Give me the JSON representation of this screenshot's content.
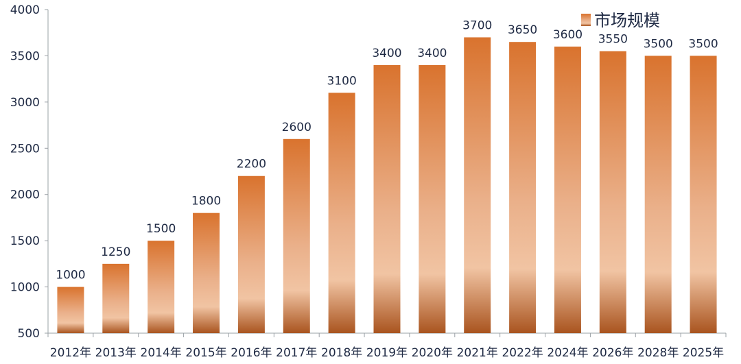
{
  "chart_data": {
    "type": "bar",
    "title": "",
    "xlabel": "",
    "ylabel": "",
    "ylim": [
      500,
      4000
    ],
    "yticks": [
      500,
      1000,
      1500,
      2000,
      2500,
      3000,
      3500,
      4000
    ],
    "grid": false,
    "legend_position": "top-right",
    "categories": [
      "2012年",
      "2013年",
      "2014年",
      "2015年",
      "2016年",
      "2017年",
      "2018年",
      "2019年",
      "2020年",
      "2021年",
      "2022年",
      "2024年",
      "2026年",
      "2028年",
      "2025年"
    ],
    "series": [
      {
        "name": "市场规模",
        "values": [
          1000,
          1250,
          1500,
          1800,
          2200,
          2600,
          3100,
          3400,
          3400,
          3700,
          3650,
          3600,
          3550,
          3500,
          3500
        ],
        "color": "#e07b39"
      }
    ],
    "colors": {
      "bar_top": "#d9732e",
      "bar_light": "#f1c4a3",
      "bar_bottom": "#a9541f",
      "axis": "#9aa0a6",
      "text": "#1f2a44"
    }
  }
}
